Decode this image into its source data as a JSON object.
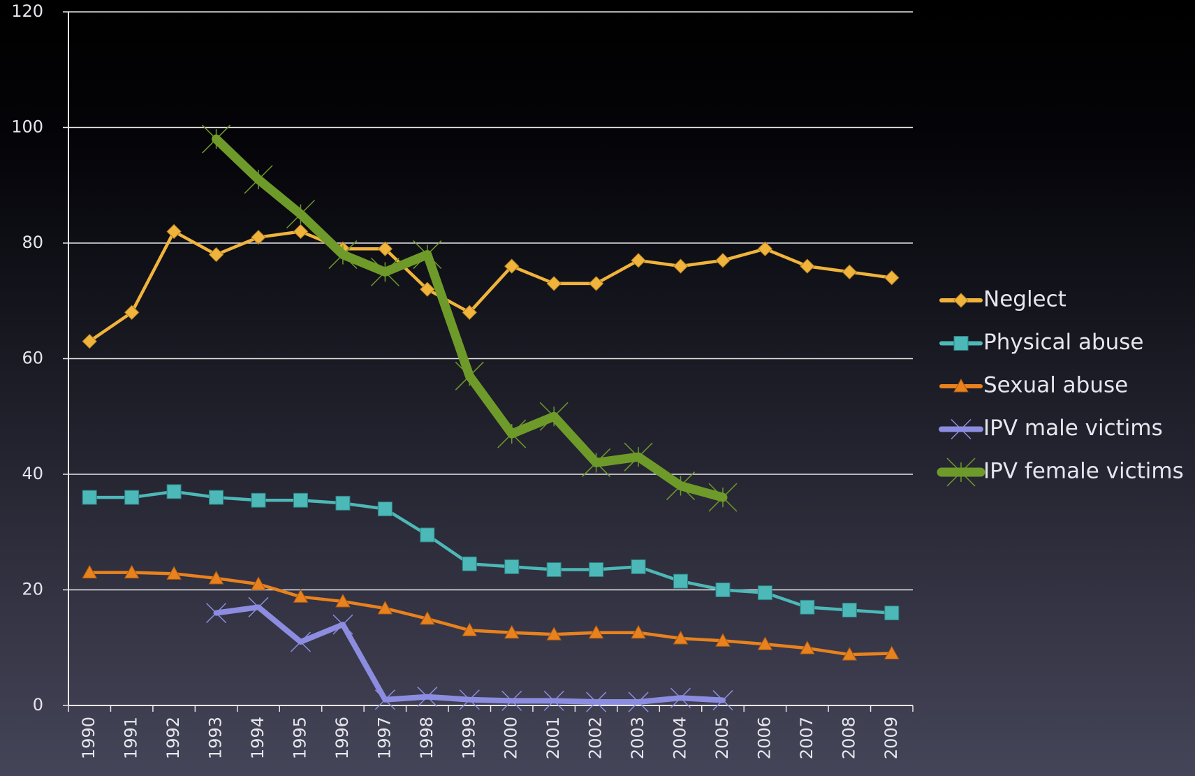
{
  "chart_data": {
    "type": "line",
    "categories": [
      "1990",
      "1991",
      "1992",
      "1993",
      "1994",
      "1995",
      "1996",
      "1997",
      "1998",
      "1999",
      "2000",
      "2001",
      "2002",
      "2003",
      "2004",
      "2005",
      "2006",
      "2007",
      "2008",
      "2009"
    ],
    "series": [
      {
        "name": "Neglect",
        "color": "#f0b43c",
        "marker": "diamond",
        "values": [
          63,
          68,
          82,
          78,
          81,
          82,
          79,
          79,
          72,
          68,
          76,
          73,
          73,
          77,
          76,
          77,
          79,
          76,
          75,
          74
        ]
      },
      {
        "name": "Physical abuse",
        "color": "#4db8b8",
        "marker": "square",
        "values": [
          36,
          36,
          37,
          36,
          35.5,
          35.5,
          35,
          34,
          29.5,
          24.5,
          24,
          23.5,
          23.5,
          24,
          21.5,
          20,
          19.5,
          17,
          16.5,
          16
        ]
      },
      {
        "name": "Sexual abuse",
        "color": "#e8821e",
        "marker": "triangle",
        "values": [
          23,
          23,
          22.8,
          22,
          21,
          18.8,
          18,
          16.8,
          15,
          13,
          12.6,
          12.3,
          12.6,
          12.6,
          11.6,
          11.2,
          10.6,
          9.9,
          8.8,
          9
        ]
      },
      {
        "name": "IPV male victims",
        "color": "#8c8ce0",
        "marker": "x",
        "values": [
          null,
          null,
          null,
          16,
          17,
          11,
          14,
          1,
          1.5,
          1,
          0.8,
          0.8,
          0.6,
          0.6,
          1.3,
          0.9,
          null,
          null,
          null,
          null
        ]
      },
      {
        "name": "IPV female victims",
        "color": "#6e9a2a",
        "marker": "star",
        "values": [
          null,
          null,
          null,
          98,
          91,
          85,
          78,
          75,
          78,
          57,
          47,
          50,
          42,
          43,
          38,
          36,
          null,
          null,
          null,
          null
        ]
      }
    ],
    "ylim": [
      0,
      120
    ],
    "yticks": [
      0,
      20,
      40,
      60,
      80,
      100,
      120
    ],
    "grid": true,
    "legend": "right"
  }
}
